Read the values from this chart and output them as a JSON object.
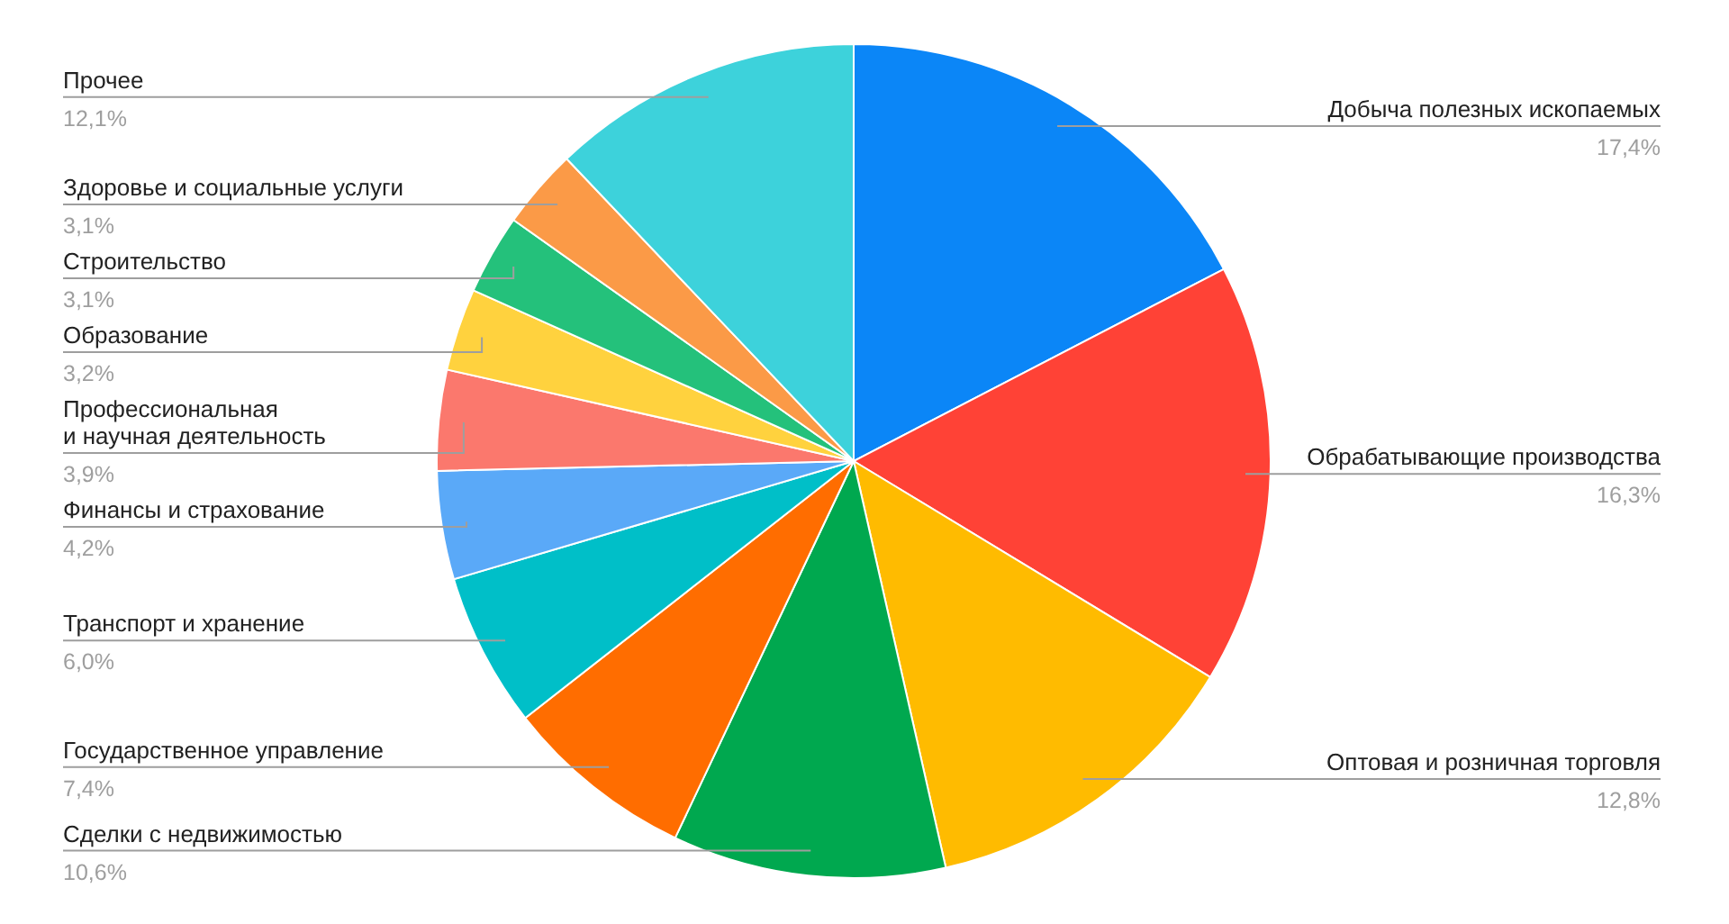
{
  "chart_data": {
    "type": "pie",
    "categories": [
      "Добыча полезных ископаемых",
      "Обрабатывающие производства",
      "Оптовая и розничная торговля",
      "Сделки с недвижимостью",
      "Государственное управление",
      "Транспорт и хранение",
      "Финансы и страхование",
      "Профессиональная\nи научная деятельность",
      "Образование",
      "Строительство",
      "Здоровье и социальные услуги",
      "Прочее"
    ],
    "values": [
      17.4,
      16.3,
      12.8,
      10.6,
      7.4,
      6.0,
      4.2,
      3.9,
      3.2,
      3.1,
      3.1,
      12.1
    ],
    "value_labels": [
      "17,4%",
      "16,3%",
      "12,8%",
      "10,6%",
      "7,4%",
      "6,0%",
      "4,2%",
      "3,9%",
      "3,2%",
      "3,1%",
      "3,1%",
      "12,1%"
    ],
    "colors": [
      "#0b86f7",
      "#ff4236",
      "#ffbb00",
      "#00a84f",
      "#ff6d00",
      "#00bfc8",
      "#5aa9f8",
      "#fb786d",
      "#ffd23e",
      "#24c17b",
      "#fb9a47",
      "#3dd2db"
    ],
    "legend": false
  }
}
